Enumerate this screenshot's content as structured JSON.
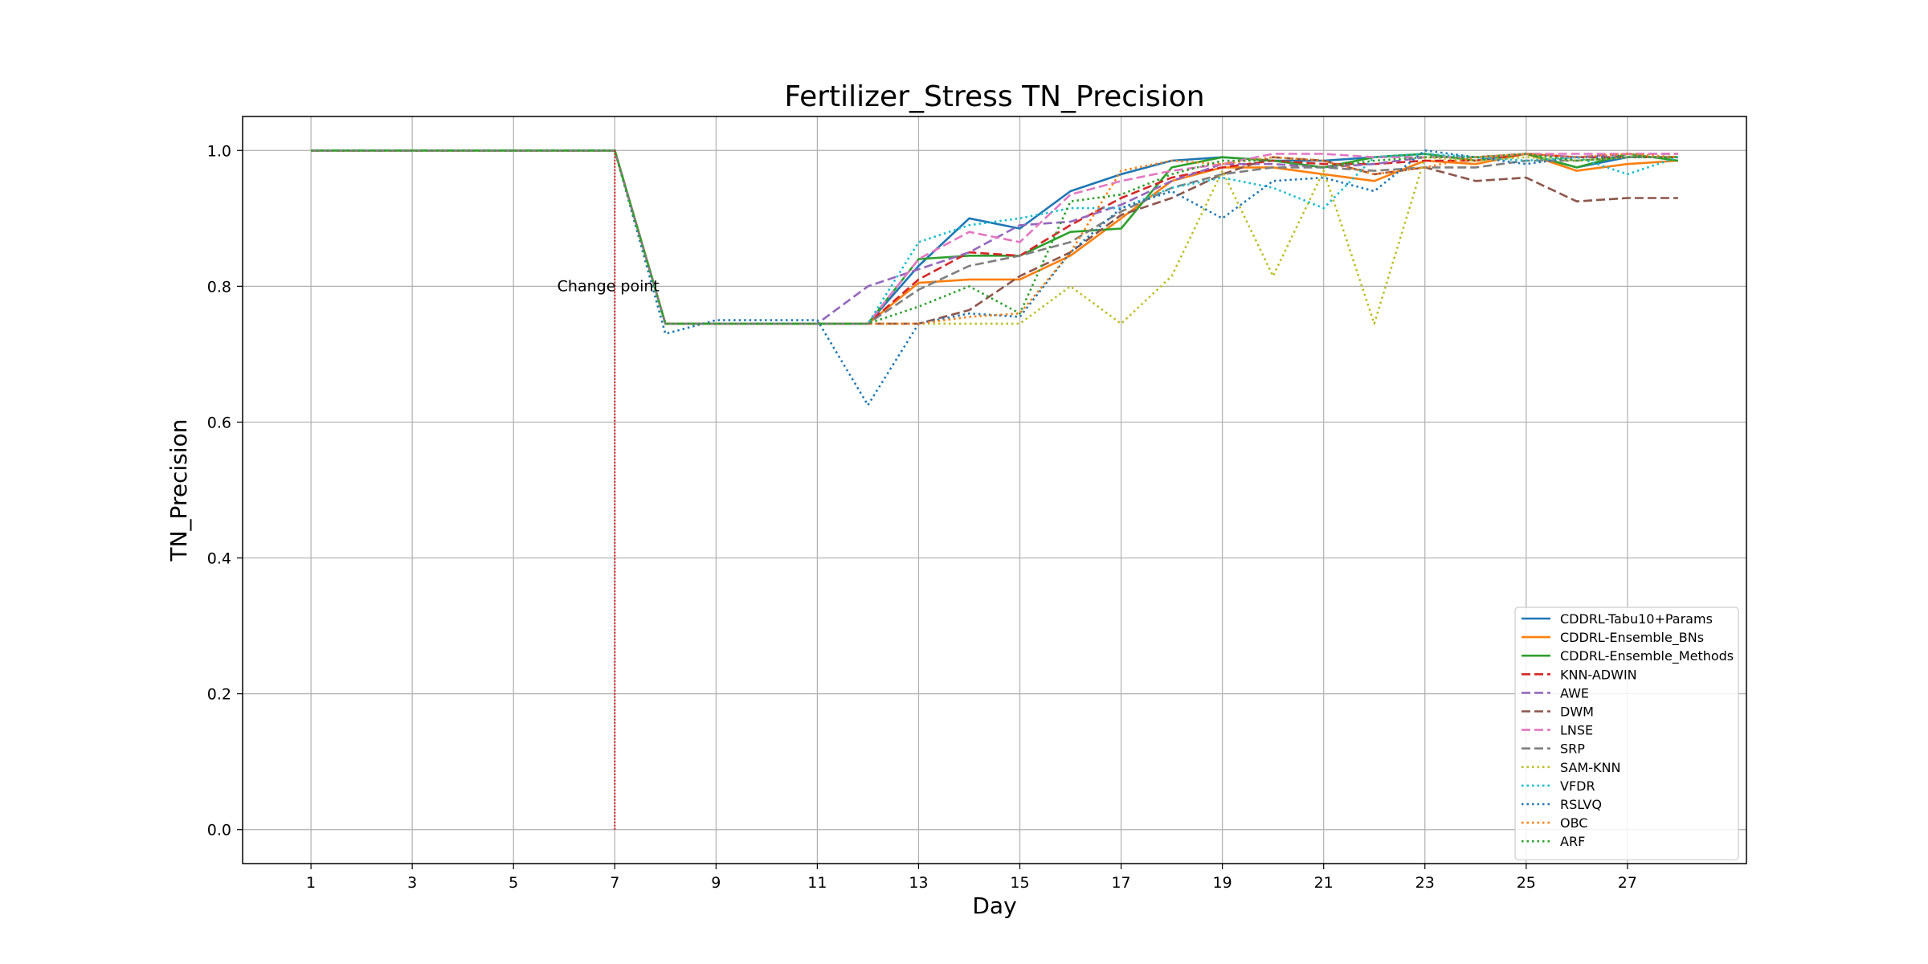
{
  "chart_data": {
    "type": "line",
    "title": "Fertilizer_Stress TN_Precision",
    "xlabel": "Day",
    "ylabel": "TN_Precision",
    "xlim": [
      -0.35,
      29.35
    ],
    "ylim": [
      -0.05,
      1.05
    ],
    "xticks": [
      1,
      3,
      5,
      7,
      9,
      11,
      13,
      15,
      17,
      19,
      21,
      23,
      25,
      27
    ],
    "yticks": [
      0.0,
      0.2,
      0.4,
      0.6,
      0.8,
      1.0
    ],
    "ytick_labels": [
      "0.0",
      "0.2",
      "0.4",
      "0.6",
      "0.8",
      "1.0"
    ],
    "grid": true,
    "legend_position": "lower-right",
    "annotation": {
      "text": "Change point",
      "x": 7,
      "y": 0.8
    },
    "change_point": {
      "x": 7,
      "y_from": 0.0,
      "y_to": 1.0,
      "color": "#d62728",
      "style": "dotted"
    },
    "x": [
      1,
      2,
      3,
      4,
      5,
      6,
      7,
      8,
      9,
      10,
      11,
      12,
      13,
      14,
      15,
      16,
      17,
      18,
      19,
      20,
      21,
      22,
      23,
      24,
      25,
      26,
      27,
      28
    ],
    "series": [
      {
        "name": "CDDRL-Tabu10+Params",
        "color": "#1f77b4",
        "style": "solid",
        "values": [
          1,
          1,
          1,
          1,
          1,
          1,
          1,
          0.745,
          0.745,
          0.745,
          0.745,
          0.745,
          0.83,
          0.9,
          0.885,
          0.94,
          0.965,
          0.985,
          0.99,
          0.985,
          0.985,
          0.99,
          0.995,
          0.985,
          0.995,
          0.975,
          0.99,
          0.99
        ]
      },
      {
        "name": "CDDRL-Ensemble_BNs",
        "color": "#ff7f0e",
        "style": "solid",
        "values": [
          1,
          1,
          1,
          1,
          1,
          1,
          1,
          0.745,
          0.745,
          0.745,
          0.745,
          0.745,
          0.805,
          0.81,
          0.81,
          0.845,
          0.9,
          0.955,
          0.975,
          0.975,
          0.965,
          0.955,
          0.985,
          0.98,
          0.995,
          0.97,
          0.98,
          0.985
        ]
      },
      {
        "name": "CDDRL-Ensemble_Methods",
        "color": "#2ca02c",
        "style": "solid",
        "values": [
          1,
          1,
          1,
          1,
          1,
          1,
          1,
          0.745,
          0.745,
          0.745,
          0.745,
          0.745,
          0.84,
          0.845,
          0.845,
          0.88,
          0.885,
          0.975,
          0.99,
          0.985,
          0.975,
          0.99,
          0.995,
          0.985,
          0.995,
          0.975,
          0.995,
          0.985
        ]
      },
      {
        "name": "KNN-ADWIN",
        "color": "#d62728",
        "style": "dashed",
        "values": [
          1,
          1,
          1,
          1,
          1,
          1,
          1,
          0.745,
          0.745,
          0.745,
          0.745,
          0.745,
          0.81,
          0.85,
          0.845,
          0.89,
          0.93,
          0.96,
          0.975,
          0.985,
          0.98,
          0.98,
          0.985,
          0.985,
          0.995,
          0.99,
          0.99,
          0.99
        ]
      },
      {
        "name": "AWE",
        "color": "#9467bd",
        "style": "dashed",
        "values": [
          1,
          1,
          1,
          1,
          1,
          1,
          1,
          0.745,
          0.745,
          0.745,
          0.745,
          0.8,
          0.825,
          0.85,
          0.89,
          0.895,
          0.92,
          0.955,
          0.98,
          0.98,
          0.975,
          0.98,
          0.99,
          0.99,
          0.995,
          0.99,
          0.995,
          0.995
        ]
      },
      {
        "name": "DWM",
        "color": "#8c564b",
        "style": "dashed",
        "values": [
          1,
          1,
          1,
          1,
          1,
          1,
          1,
          0.745,
          0.745,
          0.745,
          0.745,
          0.745,
          0.745,
          0.765,
          0.815,
          0.85,
          0.905,
          0.93,
          0.965,
          0.99,
          0.985,
          0.965,
          0.975,
          0.955,
          0.96,
          0.925,
          0.93,
          0.93
        ]
      },
      {
        "name": "LNSE",
        "color": "#e377c2",
        "style": "dashed",
        "values": [
          1,
          1,
          1,
          1,
          1,
          1,
          1,
          0.745,
          0.745,
          0.745,
          0.745,
          0.745,
          0.84,
          0.88,
          0.865,
          0.935,
          0.955,
          0.97,
          0.98,
          0.995,
          0.995,
          0.99,
          0.99,
          0.99,
          0.995,
          0.995,
          0.995,
          0.995
        ]
      },
      {
        "name": "SRP",
        "color": "#7f7f7f",
        "style": "dashed",
        "values": [
          1,
          1,
          1,
          1,
          1,
          1,
          1,
          0.745,
          0.745,
          0.745,
          0.745,
          0.745,
          0.795,
          0.83,
          0.845,
          0.865,
          0.91,
          0.945,
          0.965,
          0.975,
          0.975,
          0.97,
          0.975,
          0.975,
          0.985,
          0.985,
          0.99,
          0.99
        ]
      },
      {
        "name": "SAM-KNN",
        "color": "#bcbd22",
        "style": "dotted",
        "values": [
          1,
          1,
          1,
          1,
          1,
          1,
          1,
          0.745,
          0.745,
          0.745,
          0.745,
          0.745,
          0.745,
          0.745,
          0.745,
          0.8,
          0.745,
          0.815,
          0.97,
          0.815,
          0.97,
          0.745,
          0.99,
          0.985,
          0.99,
          0.985,
          0.99,
          0.99
        ]
      },
      {
        "name": "VFDR",
        "color": "#17becf",
        "style": "dotted",
        "values": [
          1,
          1,
          1,
          1,
          1,
          1,
          1,
          0.745,
          0.745,
          0.745,
          0.745,
          0.745,
          0.865,
          0.89,
          0.9,
          0.915,
          0.915,
          0.945,
          0.96,
          0.945,
          0.915,
          0.99,
          0.995,
          0.99,
          0.985,
          0.99,
          0.965,
          0.99
        ]
      },
      {
        "name": "RSLVQ",
        "color": "#1f77b4",
        "style": "dotted",
        "values": [
          1,
          1,
          1,
          1,
          1,
          1,
          1,
          0.73,
          0.75,
          0.75,
          0.75,
          0.625,
          0.745,
          0.76,
          0.755,
          0.85,
          0.915,
          0.94,
          0.9,
          0.955,
          0.96,
          0.94,
          1.0,
          0.99,
          0.98,
          0.99,
          0.99,
          0.99
        ]
      },
      {
        "name": "OBC",
        "color": "#ff7f0e",
        "style": "dotted",
        "values": [
          1,
          1,
          1,
          1,
          1,
          1,
          1,
          0.745,
          0.745,
          0.745,
          0.745,
          0.745,
          0.745,
          0.755,
          0.76,
          0.85,
          0.97,
          0.985,
          0.98,
          0.99,
          0.985,
          0.965,
          0.975,
          0.99,
          0.995,
          0.99,
          0.995,
          0.99
        ]
      },
      {
        "name": "ARF",
        "color": "#2ca02c",
        "style": "dotted",
        "values": [
          1,
          1,
          1,
          1,
          1,
          1,
          1,
          0.745,
          0.745,
          0.745,
          0.745,
          0.745,
          0.77,
          0.8,
          0.76,
          0.925,
          0.935,
          0.965,
          0.985,
          0.985,
          0.975,
          0.985,
          0.99,
          0.99,
          0.995,
          0.985,
          0.99,
          0.99
        ]
      }
    ]
  }
}
